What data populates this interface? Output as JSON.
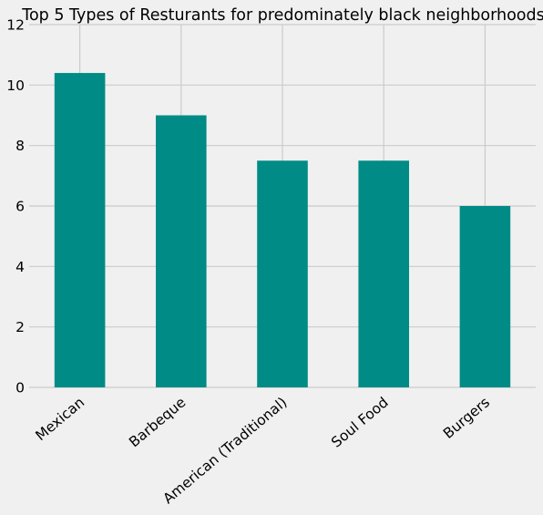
{
  "chart_data": {
    "type": "bar",
    "title": "Top 5 Types of Resturants for predominately black neighborhoods",
    "xlabel": "",
    "ylabel": "",
    "categories": [
      "Mexican",
      "Barbeque",
      "American (Traditional)",
      "Soul Food",
      "Burgers"
    ],
    "values": [
      10.4,
      9.0,
      7.5,
      7.5,
      6.0
    ],
    "ylim": [
      0,
      12
    ],
    "yticks": [
      "0",
      "2",
      "4",
      "6",
      "8",
      "10",
      "12"
    ],
    "grid": true,
    "legend": "none"
  },
  "colors": {
    "background": "#f0f0f0",
    "bar": "#008b87",
    "grid": "#cbcbcb"
  }
}
